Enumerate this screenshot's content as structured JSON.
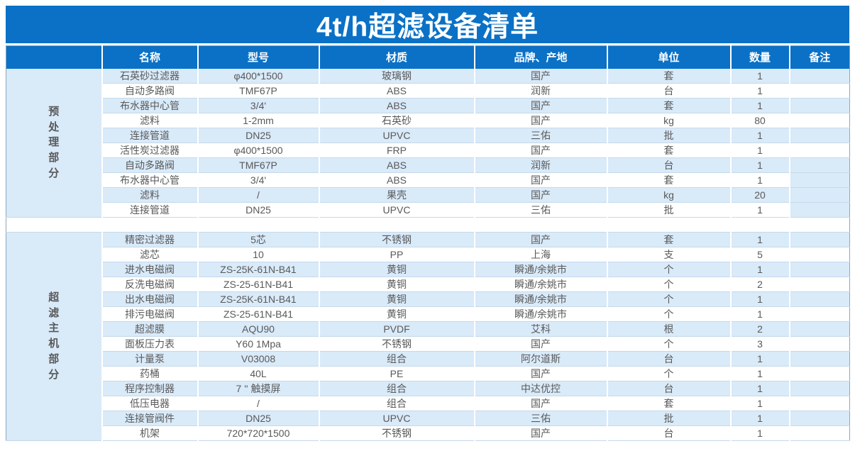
{
  "title": "4t/h超滤设备清单",
  "colors": {
    "header_blue": "#0A71C6",
    "row_blue": "#D9EAF9",
    "text": "#595959",
    "grid": "#C6D9EA",
    "outer": "#8FA6B8"
  },
  "columns": [
    "名称",
    "型号",
    "材质",
    "品牌、产地",
    "单位",
    "数量",
    "备注"
  ],
  "sections": [
    {
      "label": "预处理部分",
      "rows": [
        {
          "name": "石英砂过滤器",
          "model": "φ400*1500",
          "material": "玻璃钢",
          "brand": "国产",
          "unit": "套",
          "qty": "1",
          "remark": "",
          "shade": "blue"
        },
        {
          "name": "自动多路阀",
          "model": "TMF67P",
          "material": "ABS",
          "brand": "润新",
          "unit": "台",
          "qty": "1",
          "remark": "",
          "shade": "white"
        },
        {
          "name": "布水器中心管",
          "model": "3/4'",
          "material": "ABS",
          "brand": "国产",
          "unit": "套",
          "qty": "1",
          "remark": "",
          "shade": "blue"
        },
        {
          "name": "滤料",
          "model": "1-2mm",
          "material": "石英砂",
          "brand": "国产",
          "unit": "kg",
          "qty": "80",
          "remark": "",
          "shade": "white"
        },
        {
          "name": "连接管道",
          "model": "DN25",
          "material": "UPVC",
          "brand": "三佑",
          "unit": "批",
          "qty": "1",
          "remark": "",
          "shade": "blue"
        },
        {
          "name": "活性炭过滤器",
          "model": "φ400*1500",
          "material": "FRP",
          "brand": "国产",
          "unit": "套",
          "qty": "1",
          "remark": "",
          "shade": "white"
        },
        {
          "name": "自动多路阀",
          "model": "TMF67P",
          "material": "ABS",
          "brand": "润新",
          "unit": "台",
          "qty": "1",
          "remark": "",
          "shade": "blue"
        },
        {
          "name": "布水器中心管",
          "model": "3/4'",
          "material": "ABS",
          "brand": "国产",
          "unit": "套",
          "qty": "1",
          "remark": "",
          "shade": "white",
          "remark_shade": "blue"
        },
        {
          "name": "滤料",
          "model": "/",
          "material": "果壳",
          "brand": "国产",
          "unit": "kg",
          "qty": "20",
          "remark": "",
          "shade": "blue"
        },
        {
          "name": "连接管道",
          "model": "DN25",
          "material": "UPVC",
          "brand": "三佑",
          "unit": "批",
          "qty": "1",
          "remark": "",
          "shade": "white",
          "remark_shade": "blue"
        }
      ]
    },
    {
      "label": "超滤主机部分",
      "rows": [
        {
          "name": "精密过滤器",
          "model": "5芯",
          "material": "不锈钢",
          "brand": "国产",
          "unit": "套",
          "qty": "1",
          "remark": "",
          "shade": "blue"
        },
        {
          "name": "滤芯",
          "model": "10",
          "material": "PP",
          "brand": "上海",
          "unit": "支",
          "qty": "5",
          "remark": "",
          "shade": "white"
        },
        {
          "name": "进水电磁阀",
          "model": "ZS-25K-61N-B41",
          "material": "黄铜",
          "brand": "瞬通/余姚市",
          "unit": "个",
          "qty": "1",
          "remark": "",
          "shade": "blue"
        },
        {
          "name": "反洗电磁阀",
          "model": "ZS-25-61N-B41",
          "material": "黄铜",
          "brand": "瞬通/余姚市",
          "unit": "个",
          "qty": "2",
          "remark": "",
          "shade": "white"
        },
        {
          "name": "出水电磁阀",
          "model": "ZS-25K-61N-B41",
          "material": "黄铜",
          "brand": "瞬通/余姚市",
          "unit": "个",
          "qty": "1",
          "remark": "",
          "shade": "blue"
        },
        {
          "name": "排污电磁阀",
          "model": "ZS-25-61N-B41",
          "material": "黄铜",
          "brand": "瞬通/余姚市",
          "unit": "个",
          "qty": "1",
          "remark": "",
          "shade": "white"
        },
        {
          "name": "超滤膜",
          "model": "AQU90",
          "material": "PVDF",
          "brand": "艾科",
          "unit": "根",
          "qty": "2",
          "remark": "",
          "shade": "blue"
        },
        {
          "name": "面板压力表",
          "model": "Y60 1Mpa",
          "material": "不锈钢",
          "brand": "国产",
          "unit": "个",
          "qty": "3",
          "remark": "",
          "shade": "white"
        },
        {
          "name": "计量泵",
          "model": "V03008",
          "material": "组合",
          "brand": "阿尔道斯",
          "unit": "台",
          "qty": "1",
          "remark": "",
          "shade": "blue"
        },
        {
          "name": "药桶",
          "model": "40L",
          "material": "PE",
          "brand": "国产",
          "unit": "个",
          "qty": "1",
          "remark": "",
          "shade": "white"
        },
        {
          "name": "程序控制器",
          "model": "7 '' 触摸屏",
          "material": "组合",
          "brand": "中达优控",
          "unit": "台",
          "qty": "1",
          "remark": "",
          "shade": "blue"
        },
        {
          "name": "低压电器",
          "model": "/",
          "material": "组合",
          "brand": "国产",
          "unit": "套",
          "qty": "1",
          "remark": "",
          "shade": "white"
        },
        {
          "name": "连接管阀件",
          "model": "DN25",
          "material": "UPVC",
          "brand": "三佑",
          "unit": "批",
          "qty": "1",
          "remark": "",
          "shade": "blue"
        },
        {
          "name": "机架",
          "model": "720*720*1500",
          "material": "不锈钢",
          "brand": "国产",
          "unit": "台",
          "qty": "1",
          "remark": "",
          "shade": "white"
        }
      ]
    }
  ]
}
